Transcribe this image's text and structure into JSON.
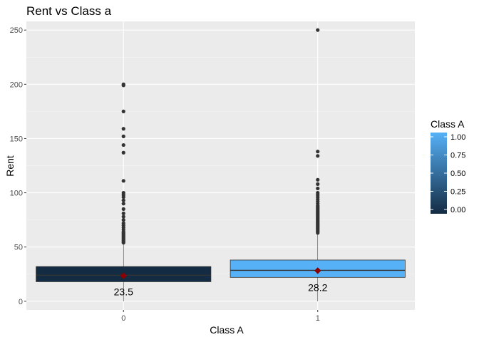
{
  "chart_data": {
    "type": "boxplot",
    "title": "Rent vs Class a",
    "xlabel": "Class A",
    "ylabel": "Rent",
    "ylim": [
      -8,
      258
    ],
    "y_ticks": [
      0,
      50,
      100,
      150,
      200,
      250
    ],
    "grid": true,
    "categories": [
      "0",
      "1"
    ],
    "boxes": [
      {
        "category": "0",
        "fill_value": 0,
        "fill_color": "#132B43",
        "lower_whisker": 0,
        "q1": 18,
        "median": 24,
        "q3": 32,
        "upper_whisker": 53,
        "mean": 23.5,
        "mean_label": "23.5",
        "outliers": [
          54,
          55,
          56,
          57,
          58,
          59,
          60,
          61,
          62,
          63,
          64,
          66,
          68,
          70,
          72,
          75,
          78,
          81,
          85,
          90,
          93,
          96,
          98,
          100,
          111,
          137,
          144,
          152,
          159,
          175,
          199,
          200
        ]
      },
      {
        "category": "1",
        "fill_value": 1,
        "fill_color": "#56B1F7",
        "lower_whisker": 0,
        "q1": 22,
        "median": 28.5,
        "q3": 38,
        "upper_whisker": 62,
        "mean": 28.2,
        "mean_label": "28.2",
        "outliers": [
          63,
          64,
          65,
          66,
          67,
          68,
          69,
          70,
          71,
          72,
          73,
          74,
          75,
          76,
          77,
          78,
          79,
          80,
          81,
          82,
          83,
          84,
          85,
          86,
          87,
          88,
          90,
          92,
          94,
          96,
          98,
          100,
          104,
          108,
          112,
          134,
          138,
          250
        ]
      }
    ],
    "mean_marker_color": "#8B0000",
    "legend": {
      "title": "Class A",
      "placement": "right",
      "low_color": "#132B43",
      "high_color": "#56B1F7",
      "ticks": [
        "0.00",
        "0.25",
        "0.50",
        "0.75",
        "1.00"
      ],
      "tick_values": [
        0,
        0.25,
        0.5,
        0.75,
        1
      ]
    }
  }
}
